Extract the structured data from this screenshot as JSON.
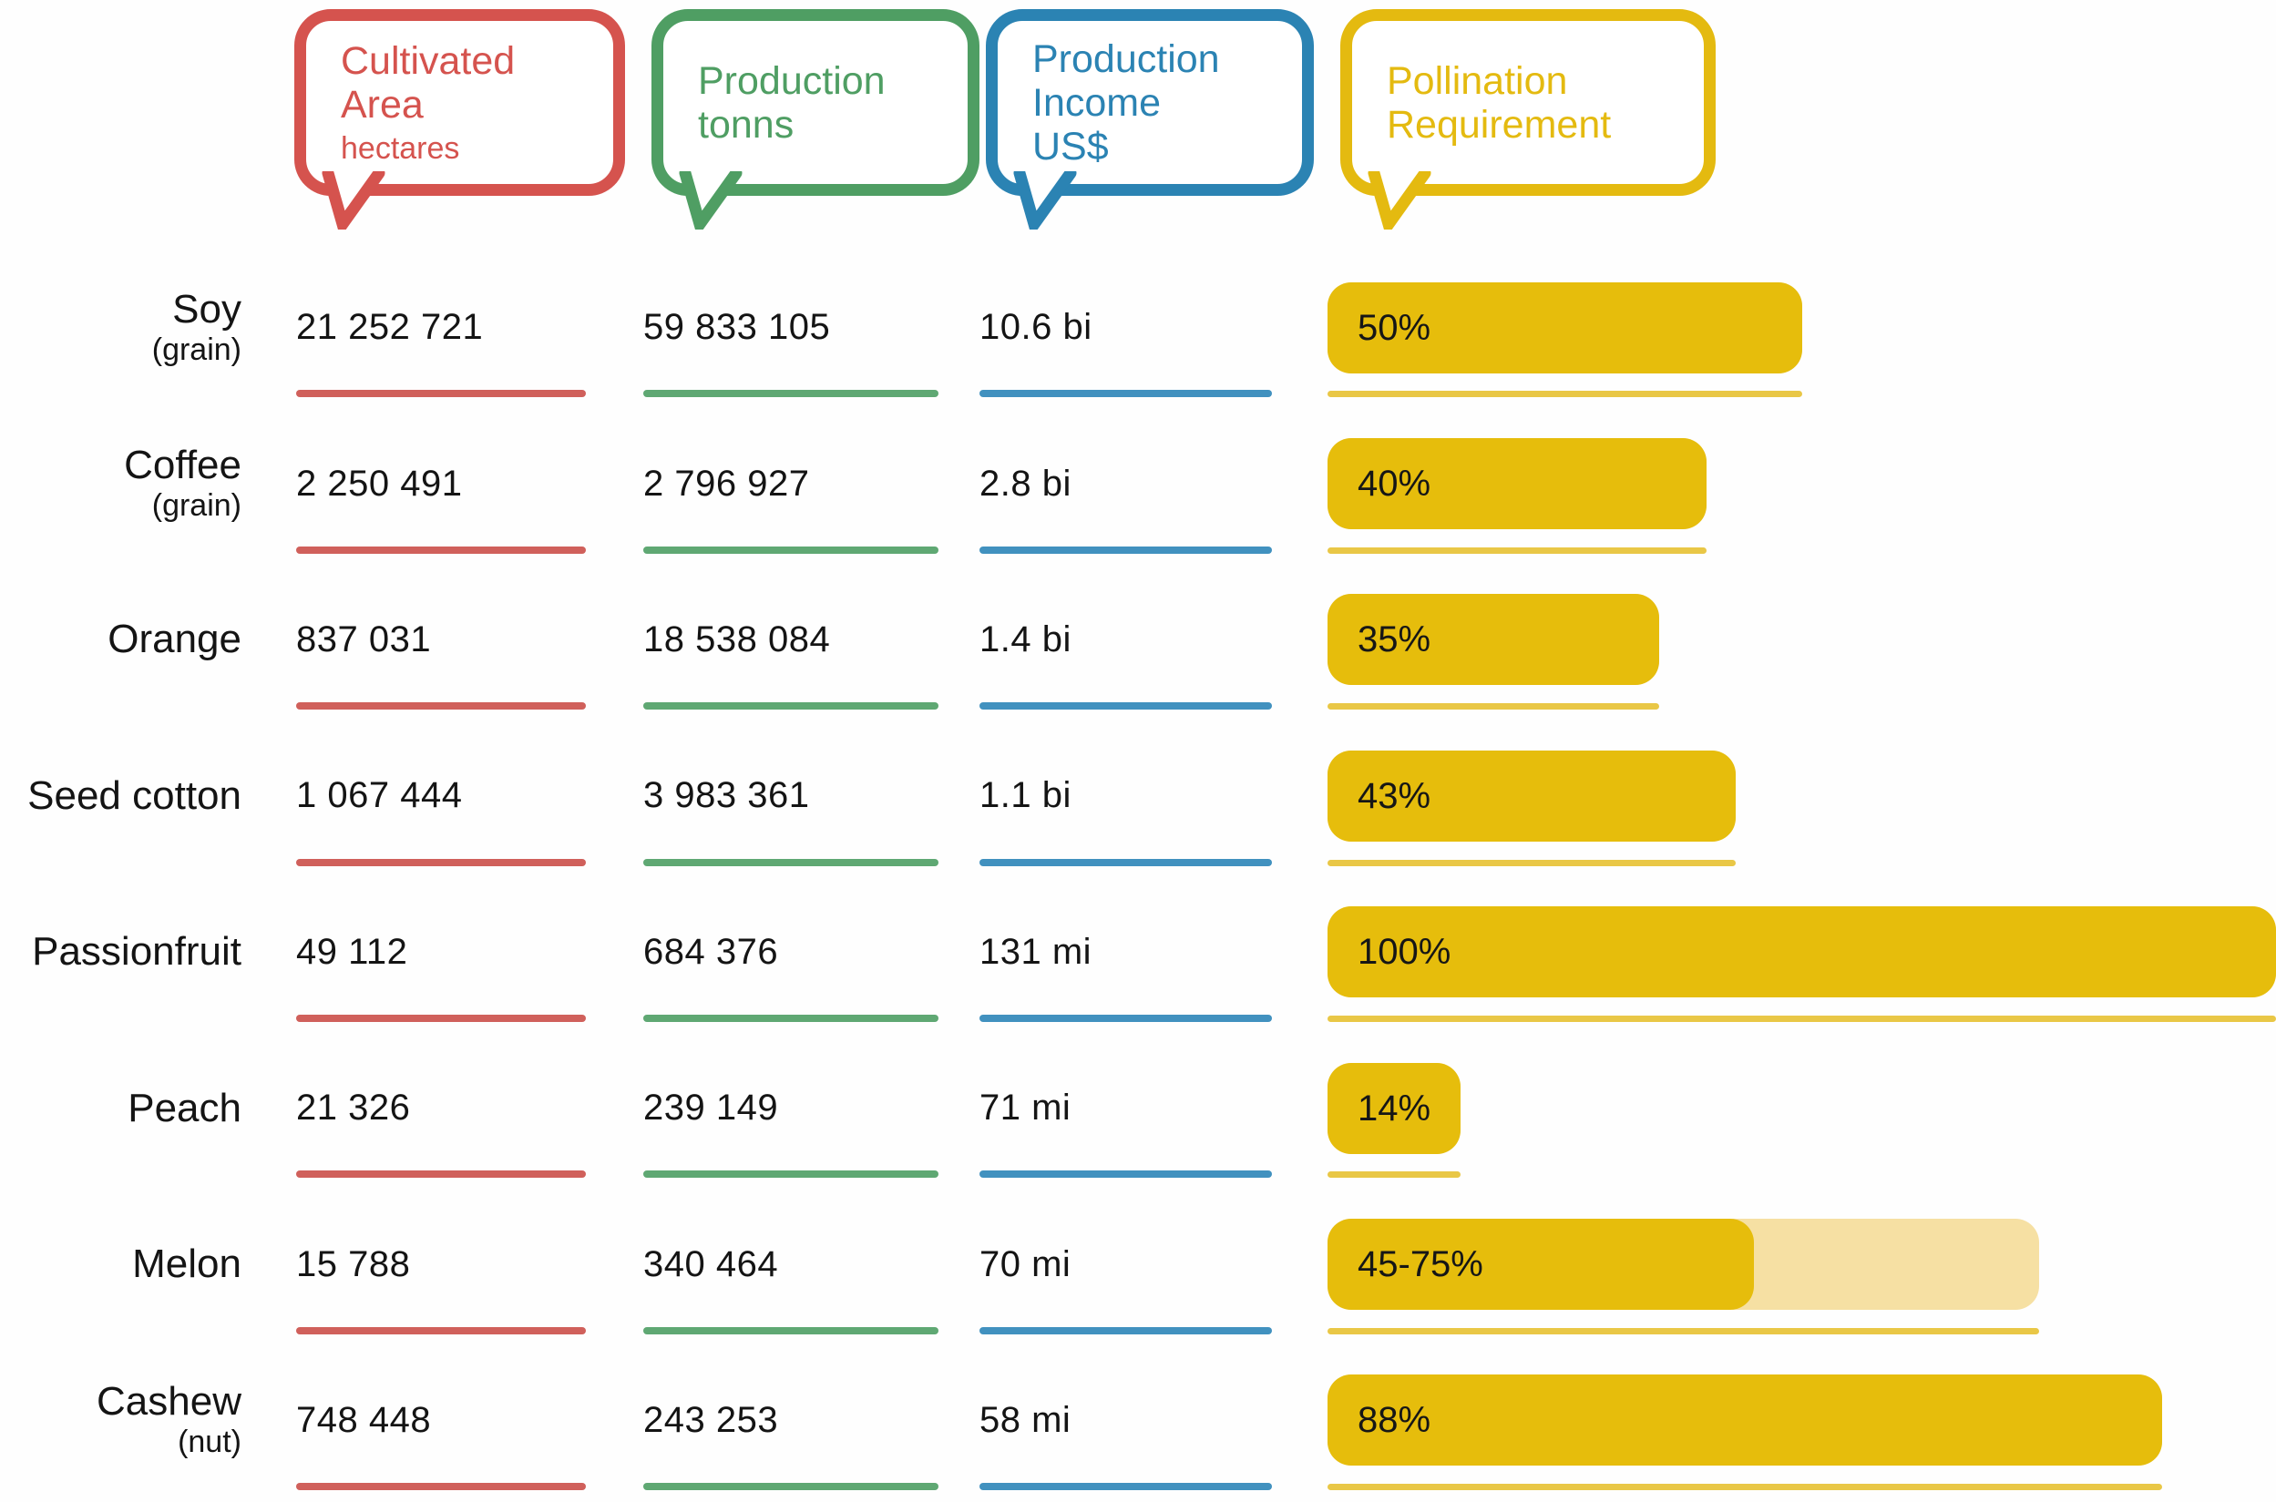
{
  "colors": {
    "red": "#d5534e",
    "green": "#4f9e63",
    "blue": "#2b83b3",
    "gold": "#e4ba10",
    "bar_gold": "#e6bd0c",
    "bar_gold_light": "#f6e0a3",
    "underline_gold": "#e9c746",
    "text": "#141414"
  },
  "headers": [
    {
      "line1": "Cultivated",
      "line2": "Area",
      "line3": "hectares"
    },
    {
      "line1": "Production",
      "line2": "tonns",
      "line3": ""
    },
    {
      "line1": "Production",
      "line2": "Income",
      "line3": "US$"
    },
    {
      "line1": "Pollination",
      "line2": "Requirement",
      "line3": ""
    }
  ],
  "rows": [
    {
      "name": "Soy",
      "sub": "(grain)",
      "area": "21 252 721",
      "production": "59 833 105",
      "income": "10.6 bi",
      "pollination": {
        "label": "50%",
        "pct": 50,
        "pct_max": 50
      }
    },
    {
      "name": "Coffee",
      "sub": "(grain)",
      "area": "2 250 491",
      "production": "2 796 927",
      "income": "2.8 bi",
      "pollination": {
        "label": "40%",
        "pct": 40,
        "pct_max": 40
      }
    },
    {
      "name": "Orange",
      "sub": "",
      "area": "837 031",
      "production": "18 538 084",
      "income": "1.4 bi",
      "pollination": {
        "label": "35%",
        "pct": 35,
        "pct_max": 35
      }
    },
    {
      "name": "Seed cotton",
      "sub": "",
      "area": "1 067 444",
      "production": "3 983 361",
      "income": "1.1 bi",
      "pollination": {
        "label": "43%",
        "pct": 43,
        "pct_max": 43
      }
    },
    {
      "name": "Passionfruit",
      "sub": "",
      "area": "49 112",
      "production": "684 376",
      "income": "131 mi",
      "pollination": {
        "label": "100%",
        "pct": 100,
        "pct_max": 100
      }
    },
    {
      "name": "Peach",
      "sub": "",
      "area": "21 326",
      "production": "239 149",
      "income": "71 mi",
      "pollination": {
        "label": "14%",
        "pct": 14,
        "pct_max": 14
      }
    },
    {
      "name": "Melon",
      "sub": "",
      "area": "15 788",
      "production": "340 464",
      "income": "70 mi",
      "pollination": {
        "label": "45-75%",
        "pct": 45,
        "pct_max": 75
      }
    },
    {
      "name": "Cashew",
      "sub": "(nut)",
      "area": "748 448",
      "production": "243 253",
      "income": "58 mi",
      "pollination": {
        "label": "88%",
        "pct": 88,
        "pct_max": 88
      }
    }
  ],
  "chart_data": {
    "type": "bar",
    "title": "",
    "categories": [
      "Soy (grain)",
      "Coffee (grain)",
      "Orange",
      "Seed cotton",
      "Passionfruit",
      "Peach",
      "Melon",
      "Cashew (nut)"
    ],
    "series": [
      {
        "name": "Cultivated Area (hectares)",
        "values": [
          21252721,
          2250491,
          837031,
          1067444,
          49112,
          21326,
          15788,
          748448
        ]
      },
      {
        "name": "Production (tonns)",
        "values": [
          59833105,
          2796927,
          18538084,
          3983361,
          684376,
          239149,
          340464,
          243253
        ]
      },
      {
        "name": "Production Income (US$)",
        "values": [
          "10.6 bi",
          "2.8 bi",
          "1.4 bi",
          "1.1 bi",
          "131 mi",
          "71 mi",
          "70 mi",
          "58 mi"
        ]
      },
      {
        "name": "Pollination Requirement (%)",
        "values": [
          50,
          40,
          35,
          43,
          100,
          14,
          45,
          88
        ],
        "max_values": [
          50,
          40,
          35,
          43,
          100,
          14,
          75,
          88
        ],
        "bar_labels": [
          "50%",
          "40%",
          "35%",
          "43%",
          "100%",
          "14%",
          "45-75%",
          "88%"
        ]
      }
    ],
    "xlim": [
      0,
      100
    ],
    "legend_position": "top",
    "grid": false
  }
}
